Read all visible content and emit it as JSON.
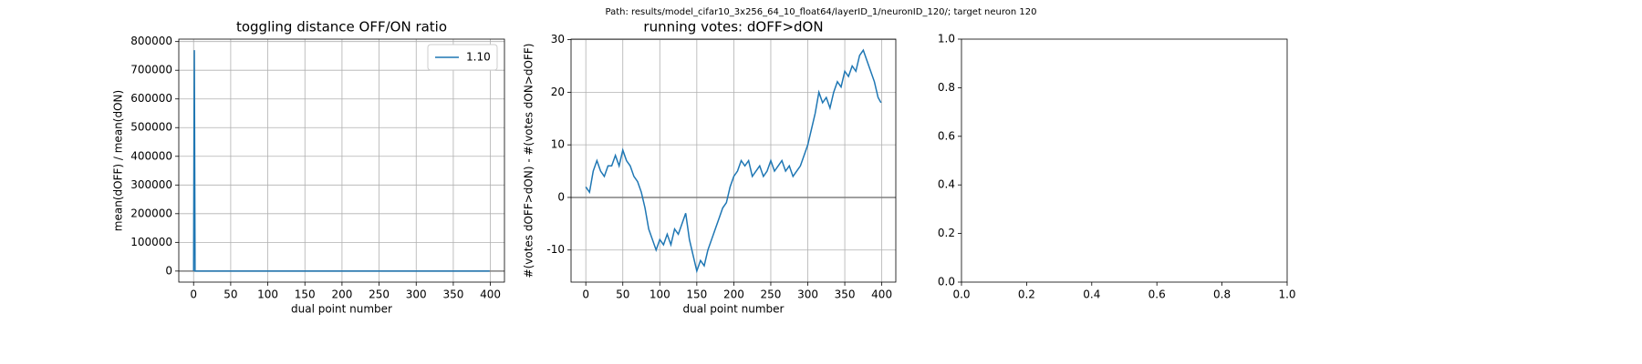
{
  "title": "Path: results/model_cifar10_3x256_64_10_float64/layerID_1/neuronID_120/; target neuron 120",
  "chart_data": [
    {
      "type": "line",
      "title": "toggling distance OFF/ON ratio",
      "xlabel": "dual point number",
      "ylabel": "mean(dOFF) / mean(dON)",
      "x": [
        0,
        1,
        2,
        100,
        200,
        300,
        399
      ],
      "series": [
        {
          "name": "1.10",
          "color": "#1f77b4",
          "values": [
            0,
            770000,
            1.1,
            1.1,
            1.1,
            1.1,
            1.1
          ]
        }
      ],
      "xlim": [
        -19.95,
        418.95
      ],
      "xticks": [
        0,
        50,
        100,
        150,
        200,
        250,
        300,
        350,
        400
      ],
      "ylim": [
        -38500,
        808500
      ],
      "yticks": [
        0,
        100000,
        200000,
        300000,
        400000,
        500000,
        600000,
        700000,
        800000
      ],
      "grid": true,
      "legend": "upper right",
      "hline": 0,
      "hline_color": "#808080"
    },
    {
      "type": "line",
      "title": "running votes: dOFF>dON",
      "xlabel": "dual point number",
      "ylabel": "#(votes dOFF>dON) - #(votes dON>dOFF)",
      "x": [
        0,
        5,
        10,
        15,
        20,
        25,
        30,
        35,
        40,
        45,
        50,
        55,
        60,
        65,
        70,
        75,
        80,
        85,
        90,
        95,
        100,
        105,
        110,
        115,
        120,
        125,
        130,
        135,
        140,
        145,
        150,
        155,
        160,
        165,
        170,
        175,
        180,
        185,
        190,
        195,
        200,
        205,
        210,
        215,
        220,
        225,
        230,
        235,
        240,
        245,
        250,
        255,
        260,
        265,
        270,
        275,
        280,
        285,
        290,
        295,
        300,
        305,
        310,
        315,
        320,
        325,
        330,
        335,
        340,
        345,
        350,
        355,
        360,
        365,
        370,
        375,
        380,
        385,
        390,
        395,
        399
      ],
      "series": [
        {
          "color": "#1f77b4",
          "values": [
            2,
            1,
            5,
            7,
            5,
            4,
            6,
            6,
            8,
            6,
            9,
            7,
            6,
            4,
            3,
            1,
            -2,
            -6,
            -8,
            -10,
            -8,
            -9,
            -7,
            -9,
            -6,
            -7,
            -5,
            -3,
            -8,
            -11,
            -14,
            -12,
            -13,
            -10,
            -8,
            -6,
            -4,
            -2,
            -1,
            2,
            4,
            5,
            7,
            6,
            7,
            4,
            5,
            6,
            4,
            5,
            7,
            5,
            6,
            7,
            5,
            6,
            4,
            5,
            6,
            8,
            10,
            13,
            16,
            20,
            18,
            19,
            17,
            20,
            22,
            21,
            24,
            23,
            25,
            24,
            27,
            28,
            26,
            24,
            22,
            19,
            18
          ]
        }
      ],
      "xlim": [
        -19.95,
        418.95
      ],
      "xticks": [
        0,
        50,
        100,
        150,
        200,
        250,
        300,
        350,
        400
      ],
      "ylim": [
        -16.1,
        30.1
      ],
      "yticks": [
        -10,
        0,
        10,
        20,
        30
      ],
      "grid": true,
      "hline": 0,
      "hline_color": "#808080"
    },
    {
      "type": "line",
      "x": [],
      "series": [],
      "xlim": [
        0,
        1
      ],
      "xticks": [
        {
          "value": 0,
          "label": "0.0"
        },
        0.2,
        0.4,
        0.6,
        0.8,
        {
          "value": 1,
          "label": "1.0"
        }
      ],
      "ylim": [
        0,
        1
      ],
      "yticks": [
        {
          "value": 0,
          "label": "0.0"
        },
        0.2,
        0.4,
        0.6,
        0.8,
        {
          "value": 1,
          "label": "1.0"
        }
      ],
      "grid": false
    }
  ]
}
